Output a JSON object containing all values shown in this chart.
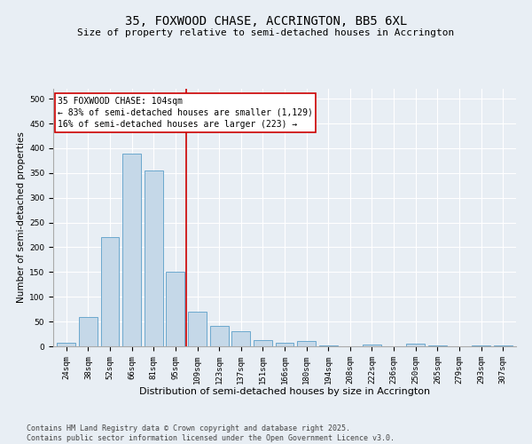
{
  "title": "35, FOXWOOD CHASE, ACCRINGTON, BB5 6XL",
  "subtitle": "Size of property relative to semi-detached houses in Accrington",
  "xlabel": "Distribution of semi-detached houses by size in Accrington",
  "ylabel": "Number of semi-detached properties",
  "categories": [
    "24sqm",
    "38sqm",
    "52sqm",
    "66sqm",
    "81sqm",
    "95sqm",
    "109sqm",
    "123sqm",
    "137sqm",
    "151sqm",
    "166sqm",
    "180sqm",
    "194sqm",
    "208sqm",
    "222sqm",
    "236sqm",
    "250sqm",
    "265sqm",
    "279sqm",
    "293sqm",
    "307sqm"
  ],
  "values": [
    8,
    60,
    220,
    390,
    355,
    150,
    70,
    42,
    30,
    13,
    8,
    10,
    2,
    0,
    3,
    0,
    5,
    1,
    0,
    1,
    1
  ],
  "bar_color": "#c5d8e8",
  "bar_edgecolor": "#5a9ec9",
  "vline_x": 5.5,
  "vline_color": "#cc0000",
  "annotation_title": "35 FOXWOOD CHASE: 104sqm",
  "annotation_line1": "← 83% of semi-detached houses are smaller (1,129)",
  "annotation_line2": "16% of semi-detached houses are larger (223) →",
  "annotation_box_color": "#cc0000",
  "ylim": [
    0,
    520
  ],
  "yticks": [
    0,
    50,
    100,
    150,
    200,
    250,
    300,
    350,
    400,
    450,
    500
  ],
  "background_color": "#e8eef4",
  "plot_bg_color": "#e8eef4",
  "footer": "Contains HM Land Registry data © Crown copyright and database right 2025.\nContains public sector information licensed under the Open Government Licence v3.0.",
  "title_fontsize": 10,
  "subtitle_fontsize": 8,
  "xlabel_fontsize": 8,
  "ylabel_fontsize": 7.5,
  "tick_fontsize": 6.5,
  "annotation_fontsize": 7,
  "footer_fontsize": 6
}
